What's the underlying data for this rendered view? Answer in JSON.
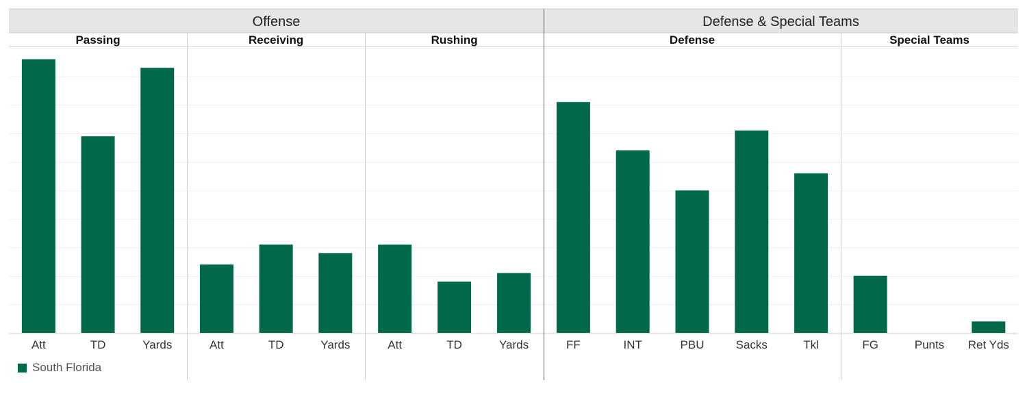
{
  "chart_data": {
    "type": "bar",
    "title": "",
    "ylim": [
      0,
      100
    ],
    "grid": true,
    "legend_position": "bottom-left",
    "groups": [
      {
        "name": "Offense",
        "subgroups": [
          {
            "name": "Passing",
            "categories": [
              "Att",
              "TD",
              "Yards"
            ],
            "values": [
              96,
              69,
              93
            ]
          },
          {
            "name": "Receiving",
            "categories": [
              "Att",
              "TD",
              "Yards"
            ],
            "values": [
              24,
              31,
              28
            ]
          },
          {
            "name": "Rushing",
            "categories": [
              "Att",
              "TD",
              "Yards"
            ],
            "values": [
              31,
              18,
              21
            ]
          }
        ]
      },
      {
        "name": "Defense & Special Teams",
        "subgroups": [
          {
            "name": "Defense",
            "categories": [
              "FF",
              "INT",
              "PBU",
              "Sacks",
              "Tkl"
            ],
            "values": [
              81,
              64,
              50,
              71,
              56
            ]
          },
          {
            "name": "Special Teams",
            "categories": [
              "FG",
              "Punts",
              "Ret Yds"
            ],
            "values": [
              20,
              0,
              4
            ]
          }
        ]
      }
    ],
    "series": [
      {
        "name": "South Florida",
        "color": "#00694a"
      }
    ]
  },
  "colors": {
    "bar": "#00694a",
    "header_bg": "#e6e6e6",
    "grid": "#f0f0f0",
    "divider_light": "#cccccc",
    "divider_dark": "#555555"
  }
}
